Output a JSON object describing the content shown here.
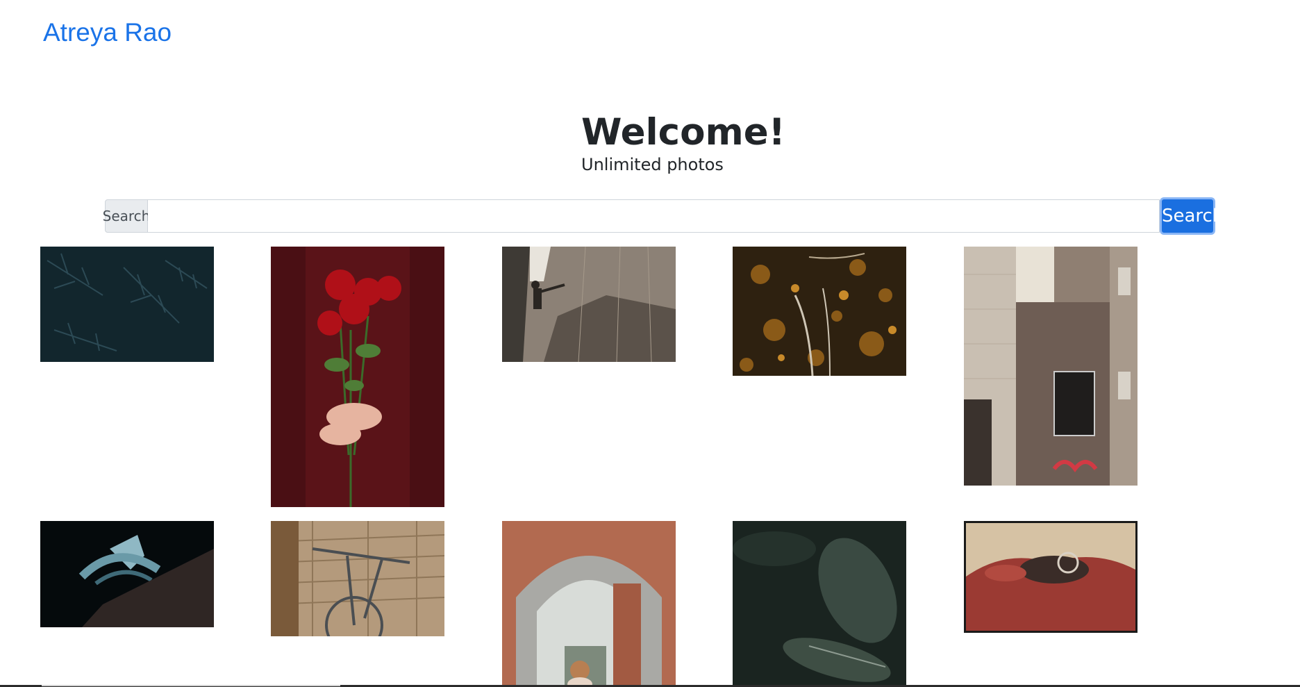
{
  "brand": "Atreya Rao",
  "hero": {
    "title": "Welcome!",
    "subtitle": "Unlimited photos"
  },
  "search": {
    "label": "Search",
    "value": "",
    "placeholder": "",
    "button_label": "Search"
  },
  "colors": {
    "brand": "#1a73e8",
    "button": "#1a6fe0",
    "text": "#212529"
  },
  "photos": [
    {
      "subject": "pine-branches"
    },
    {
      "subject": "red-roses-bouquet"
    },
    {
      "subject": "rock-climber"
    },
    {
      "subject": "autumn-forest-aerial"
    },
    {
      "subject": "brick-building-sign"
    },
    {
      "subject": "building-at-night"
    },
    {
      "subject": "bicycle-by-wall"
    },
    {
      "subject": "brick-archway"
    },
    {
      "subject": "dark-leaves"
    },
    {
      "subject": "red-vintage-car"
    }
  ]
}
